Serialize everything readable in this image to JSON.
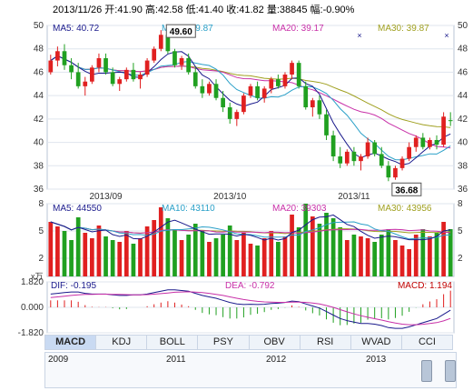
{
  "header": {
    "text": "2013/11/26 开:41.90 高:42.58 低:41.40 收:41.82 量:38845 幅:-0.90%"
  },
  "price_panel": {
    "ma_labels": [
      {
        "text": "MA5: 40.72",
        "color": "#1a1a8c"
      },
      {
        "text": "MA10: 39.87",
        "color": "#2aa0c8"
      },
      {
        "text": "MA20: 39.17",
        "color": "#c830a8"
      },
      {
        "text": "MA30: 39.87",
        "color": "#a0a020"
      }
    ],
    "high_marker": "49.60",
    "low_marker": "36.68",
    "date_ticks": [
      "2013/09",
      "2013/10",
      "2013/11"
    ]
  },
  "volume_panel": {
    "unit": "x万",
    "ma_labels": [
      {
        "text": "MA5: 44550",
        "color": "#1a1a8c"
      },
      {
        "text": "MA10: 43110",
        "color": "#2aa0c8"
      },
      {
        "text": "MA20: 39303",
        "color": "#c830a8"
      },
      {
        "text": "MA30: 43956",
        "color": "#a0a020"
      }
    ]
  },
  "macd_panel": {
    "labels": [
      {
        "text": "DIF: -0.195",
        "color": "#1a1a8c"
      },
      {
        "text": "DEA: -0.792",
        "color": "#c830a8"
      },
      {
        "text": "MACD: 1.194",
        "color": "#c00000"
      }
    ]
  },
  "tabs": [
    "MACD",
    "KDJ",
    "BOLL",
    "PSY",
    "OBV",
    "RSI",
    "WVAD",
    "CCI"
  ],
  "active_tab": "MACD",
  "navigator": {
    "years": [
      "2009",
      "2011",
      "2012",
      "2013"
    ]
  },
  "colors": {
    "up": "#e02020",
    "down": "#20a020",
    "grid": "#dfe5ee"
  },
  "chart_data": [
    {
      "type": "candlestick",
      "title": "",
      "x_tick_labels": [
        "2013/09",
        "2013/10",
        "2013/11"
      ],
      "ylim": [
        36,
        50
      ],
      "y_ticks": [
        36,
        38,
        40,
        42,
        44,
        46,
        48,
        50
      ],
      "annotations": [
        {
          "text": "49.60",
          "meaning": "period high"
        },
        {
          "text": "36.68",
          "meaning": "period low"
        }
      ],
      "candles": [
        [
          46,
          47.5,
          45.8,
          47
        ],
        [
          47,
          48.2,
          46.5,
          47.8
        ],
        [
          47.8,
          48.4,
          46.2,
          46.6
        ],
        [
          46.6,
          47.2,
          45.4,
          46
        ],
        [
          46,
          46.8,
          44.6,
          44.8
        ],
        [
          44.8,
          45.6,
          44,
          45.2
        ],
        [
          45.2,
          46.6,
          45,
          46.4
        ],
        [
          46.4,
          47.6,
          46,
          47.2
        ],
        [
          47.2,
          47.6,
          45.8,
          46
        ],
        [
          46,
          46.4,
          44.8,
          45
        ],
        [
          45,
          45.6,
          44.4,
          45.4
        ],
        [
          45.4,
          46.4,
          45.2,
          46.2
        ],
        [
          46.2,
          46.8,
          45.2,
          45.4
        ],
        [
          45.4,
          46,
          44.6,
          45.8
        ],
        [
          45.8,
          47.2,
          45.6,
          47
        ],
        [
          47,
          48.2,
          46.8,
          48
        ],
        [
          48,
          49.6,
          47.8,
          49.2
        ],
        [
          49.2,
          49.4,
          47.6,
          47.8
        ],
        [
          47.8,
          48,
          46.4,
          46.6
        ],
        [
          46.6,
          47.4,
          46.2,
          47.2
        ],
        [
          47.2,
          47.6,
          45.8,
          46
        ],
        [
          46,
          46.4,
          44.6,
          44.8
        ],
        [
          44.8,
          45.4,
          43.8,
          44.2
        ],
        [
          44.2,
          45.2,
          44,
          45
        ],
        [
          45,
          45.4,
          43.6,
          43.8
        ],
        [
          43.8,
          44.4,
          42.6,
          43
        ],
        [
          43,
          43.4,
          41.6,
          42
        ],
        [
          42,
          42.8,
          41.4,
          42.6
        ],
        [
          42.6,
          44.2,
          42.4,
          44
        ],
        [
          44,
          45,
          43.8,
          44.8
        ],
        [
          44.8,
          45.2,
          43.6,
          43.8
        ],
        [
          43.8,
          44.8,
          43.4,
          44.6
        ],
        [
          44.6,
          45.6,
          44.2,
          45.4
        ],
        [
          45.4,
          45.8,
          44.6,
          44.8
        ],
        [
          44.8,
          46,
          44.6,
          45.8
        ],
        [
          45.8,
          47,
          45.4,
          46.8
        ],
        [
          46.8,
          47,
          44.6,
          44.8
        ],
        [
          44.8,
          45.2,
          42.8,
          43
        ],
        [
          43,
          43.8,
          42.2,
          43.6
        ],
        [
          43.6,
          44,
          42,
          42.4
        ],
        [
          42.4,
          42.8,
          40.2,
          40.6
        ],
        [
          40.6,
          41,
          38.4,
          38.8
        ],
        [
          38.8,
          39.6,
          37.8,
          38.2
        ],
        [
          38.2,
          39.4,
          38,
          39.2
        ],
        [
          39.2,
          39.6,
          38,
          38.4
        ],
        [
          38.4,
          39,
          37.6,
          38.8
        ],
        [
          38.8,
          40.4,
          38.6,
          40
        ],
        [
          40,
          40.2,
          38.8,
          39
        ],
        [
          39,
          39.6,
          37.8,
          38
        ],
        [
          38,
          38.4,
          36.68,
          37
        ],
        [
          37,
          38,
          36.8,
          37.8
        ],
        [
          37.8,
          38.8,
          37.6,
          38.6
        ],
        [
          38.6,
          40,
          38.4,
          39.6
        ],
        [
          39.6,
          40.6,
          39.2,
          40.4
        ],
        [
          40.4,
          40.8,
          39.4,
          39.6
        ],
        [
          39.6,
          40.4,
          39.4,
          40.2
        ],
        [
          40.2,
          40.6,
          39.4,
          39.8
        ],
        [
          39.8,
          42.58,
          39.6,
          42.2
        ],
        [
          41.9,
          42.58,
          41.4,
          41.82
        ]
      ]
    },
    {
      "type": "bar",
      "title": "",
      "ylabel": "x万",
      "ylim": [
        0,
        8
      ],
      "y_ticks": [
        2,
        5,
        8
      ],
      "values": [
        6,
        5.5,
        5,
        4,
        6.5,
        4.8,
        4.2,
        5.6,
        4.4,
        4,
        3.8,
        5,
        3.6,
        4.2,
        5.5,
        6.2,
        7.6,
        6.4,
        5.2,
        4,
        4.6,
        5.8,
        5,
        3.8,
        4.2,
        4.6,
        5.6,
        4,
        4.8,
        3.6,
        3.4,
        4.2,
        5,
        3.8,
        4.4,
        6.8,
        5.4,
        8,
        6.6,
        5.8,
        7,
        6.4,
        5.4,
        4,
        4.6,
        4.4,
        4.2,
        3.8,
        4.6,
        5.2,
        4,
        3.4,
        3,
        4.6,
        5.2,
        4.4,
        4.8,
        6,
        5.2
      ]
    },
    {
      "type": "line+bar",
      "title": "",
      "ylim": [
        -1.82,
        1.82
      ],
      "y_ticks": [
        1.82,
        0,
        -1.82
      ],
      "series": [
        {
          "name": "DIF",
          "values": [
            0.95,
            1.0,
            1.05,
            1.1,
            1.1,
            1.0,
            0.95,
            0.95,
            0.95,
            0.9,
            0.85,
            0.85,
            0.9,
            0.9,
            0.95,
            1.05,
            1.15,
            1.25,
            1.25,
            1.2,
            1.15,
            1.0,
            0.85,
            0.75,
            0.65,
            0.5,
            0.35,
            0.25,
            0.2,
            0.22,
            0.2,
            0.22,
            0.28,
            0.3,
            0.35,
            0.45,
            0.4,
            0.25,
            0.1,
            -0.05,
            -0.3,
            -0.55,
            -0.8,
            -0.95,
            -1.05,
            -1.15,
            -1.15,
            -1.2,
            -1.3,
            -1.45,
            -1.5,
            -1.5,
            -1.4,
            -1.25,
            -1.1,
            -0.95,
            -0.8,
            -0.5,
            -0.2
          ]
        },
        {
          "name": "DEA",
          "values": [
            0.7,
            0.75,
            0.8,
            0.85,
            0.9,
            0.92,
            0.93,
            0.94,
            0.94,
            0.93,
            0.92,
            0.91,
            0.9,
            0.9,
            0.91,
            0.94,
            0.98,
            1.03,
            1.08,
            1.1,
            1.11,
            1.09,
            1.05,
            1.0,
            0.93,
            0.85,
            0.75,
            0.65,
            0.56,
            0.49,
            0.43,
            0.39,
            0.37,
            0.36,
            0.36,
            0.38,
            0.38,
            0.36,
            0.31,
            0.24,
            0.13,
            0.0,
            -0.16,
            -0.32,
            -0.47,
            -0.6,
            -0.71,
            -0.81,
            -0.91,
            -1.02,
            -1.12,
            -1.2,
            -1.24,
            -1.24,
            -1.21,
            -1.16,
            -1.09,
            -0.97,
            -0.79
          ]
        },
        {
          "name": "MACD",
          "values": [
            0.5,
            0.5,
            0.5,
            0.5,
            0.4,
            0.16,
            0.04,
            0.02,
            0.02,
            -0.06,
            -0.14,
            -0.12,
            0.0,
            0.0,
            0.08,
            0.22,
            0.34,
            0.44,
            0.34,
            0.2,
            0.08,
            -0.18,
            -0.4,
            -0.5,
            -0.56,
            -0.7,
            -0.8,
            -0.8,
            -0.72,
            -0.54,
            -0.46,
            -0.34,
            -0.18,
            -0.12,
            -0.02,
            0.14,
            0.04,
            -0.22,
            -0.42,
            -0.58,
            -0.86,
            -1.1,
            -1.28,
            -1.26,
            -1.16,
            -1.1,
            -0.88,
            -0.78,
            -0.78,
            -0.86,
            -0.76,
            -0.6,
            -0.32,
            -0.02,
            0.22,
            0.42,
            0.58,
            0.94,
            1.194
          ]
        }
      ]
    }
  ]
}
